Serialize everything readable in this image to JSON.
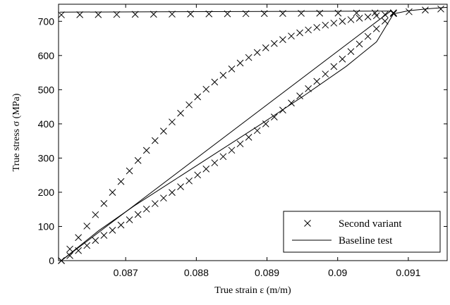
{
  "chart_data": {
    "type": "line",
    "xlabel": "True strain ε (m/m)",
    "ylabel": "True stress σ (MPa)",
    "xlim": [
      0.08605,
      0.09155
    ],
    "ylim": [
      0,
      750
    ],
    "xticks": [
      0.087,
      0.088,
      0.089,
      0.09,
      0.091
    ],
    "xtick_labels": [
      "0.087",
      "0.088",
      "0.089",
      "0.09",
      "0.091"
    ],
    "yticks": [
      0,
      100,
      200,
      300,
      400,
      500,
      600,
      700
    ],
    "ytick_labels": [
      "0",
      "100",
      "200",
      "300",
      "400",
      "500",
      "600",
      "700"
    ],
    "grid": false,
    "legend": {
      "position": "bottom-right",
      "entries": [
        "Second variant",
        "Baseline test"
      ]
    },
    "series": [
      {
        "name": "Baseline test",
        "style": "line",
        "color": "#000000",
        "segments": [
          {
            "x": [
              0.08607,
              0.09075
            ],
            "y": [
              727,
              730
            ]
          },
          {
            "x": [
              0.09075,
              0.08609
            ],
            "y": [
              730,
              0
            ]
          },
          {
            "x": [
              0.08609,
              0.08662,
              0.08712,
              0.08772,
              0.08832,
              0.08892,
              0.08952,
              0.09012,
              0.09055,
              0.09079
            ],
            "y": [
              0,
              88,
              160,
              240,
              320,
              400,
              482,
              568,
              640,
              722
            ]
          },
          {
            "x": [
              0.09079,
              0.091,
              0.0913,
              0.09155
            ],
            "y": [
              722,
              731,
              737,
              741
            ]
          }
        ]
      },
      {
        "name": "Second variant",
        "style": "marker",
        "marker": "x",
        "color": "#000000",
        "segments": [
          {
            "x_start": 0.08609,
            "x_end": 0.09079,
            "count": 19,
            "y_start": 719,
            "y_end": 725
          },
          {
            "x_start": 0.09079,
            "x_end": 0.08609,
            "count": 40,
            "curve": "upper"
          },
          {
            "x_start": 0.08609,
            "x_end": 0.09079,
            "count": 40,
            "curve": "lower"
          },
          {
            "x": [
              0.09079,
              0.09101,
              0.09124,
              0.09146
            ],
            "y": [
              723,
              728,
              733,
              736
            ]
          }
        ]
      }
    ]
  }
}
